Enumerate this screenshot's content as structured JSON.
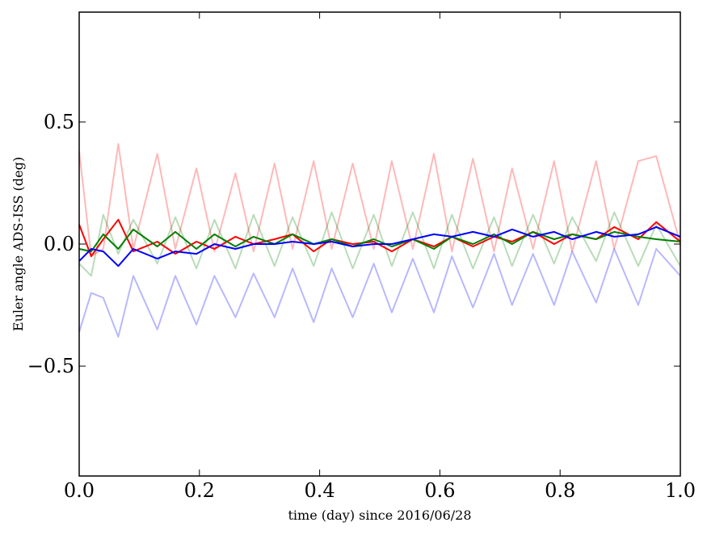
{
  "chart_data": {
    "type": "line",
    "title": "",
    "xlabel": "time (day) since 2016/06/28",
    "ylabel": "Euler angle ADS-ISS (deg)",
    "xlim": [
      0.0,
      1.0
    ],
    "ylim": [
      -0.95,
      0.95
    ],
    "x_ticks": [
      0.0,
      0.2,
      0.4,
      0.6,
      0.8,
      1.0
    ],
    "x_tick_labels": [
      "0.0",
      "0.2",
      "0.4",
      "0.6",
      "0.8",
      "1.0"
    ],
    "y_ticks": [
      -0.5,
      0.0,
      0.5
    ],
    "y_tick_labels": [
      "−0.5",
      "0.0",
      "0.5"
    ],
    "grid": false,
    "legend": "none",
    "x": [
      0.0,
      0.02,
      0.04,
      0.065,
      0.09,
      0.13,
      0.16,
      0.195,
      0.225,
      0.26,
      0.29,
      0.325,
      0.355,
      0.39,
      0.42,
      0.455,
      0.49,
      0.52,
      0.555,
      0.59,
      0.62,
      0.655,
      0.69,
      0.72,
      0.755,
      0.79,
      0.82,
      0.86,
      0.89,
      0.93,
      0.96,
      1.0
    ],
    "series": [
      {
        "color": "#ff0000",
        "alpha": 0.28,
        "values": [
          0.38,
          -0.05,
          -0.02,
          0.41,
          -0.02,
          0.37,
          -0.02,
          0.31,
          -0.03,
          0.29,
          -0.03,
          0.33,
          -0.02,
          0.34,
          -0.02,
          0.33,
          -0.02,
          0.34,
          -0.02,
          0.37,
          -0.03,
          0.35,
          -0.03,
          0.31,
          -0.02,
          0.34,
          -0.03,
          0.34,
          -0.02,
          0.34,
          0.36,
          0.0
        ]
      },
      {
        "color": "#008000",
        "alpha": 0.28,
        "values": [
          -0.08,
          -0.13,
          0.12,
          -0.04,
          0.1,
          -0.08,
          0.11,
          -0.1,
          0.1,
          -0.1,
          0.12,
          -0.09,
          0.11,
          -0.09,
          0.13,
          -0.1,
          0.12,
          -0.09,
          0.13,
          -0.1,
          0.12,
          -0.1,
          0.11,
          -0.09,
          0.12,
          -0.08,
          0.11,
          -0.07,
          0.13,
          -0.09,
          0.08,
          -0.09
        ]
      },
      {
        "color": "#0000ff",
        "alpha": 0.28,
        "values": [
          -0.36,
          -0.2,
          -0.22,
          -0.38,
          -0.13,
          -0.35,
          -0.13,
          -0.33,
          -0.13,
          -0.3,
          -0.12,
          -0.3,
          -0.1,
          -0.32,
          -0.1,
          -0.3,
          -0.08,
          -0.28,
          -0.06,
          -0.28,
          -0.05,
          -0.26,
          -0.04,
          -0.25,
          -0.04,
          -0.25,
          -0.03,
          -0.24,
          -0.02,
          -0.25,
          -0.02,
          -0.13
        ]
      },
      {
        "color": "#ff0000",
        "alpha": 1.0,
        "values": [
          0.08,
          -0.05,
          0.02,
          0.1,
          -0.03,
          0.01,
          -0.04,
          0.01,
          -0.02,
          0.03,
          0.0,
          0.02,
          0.04,
          -0.03,
          0.02,
          0.0,
          0.01,
          -0.03,
          0.02,
          -0.01,
          0.03,
          -0.01,
          0.03,
          0.01,
          0.05,
          0.0,
          0.04,
          0.02,
          0.07,
          0.02,
          0.09,
          0.01
        ]
      },
      {
        "color": "#008000",
        "alpha": 1.0,
        "values": [
          -0.02,
          -0.03,
          0.04,
          -0.02,
          0.06,
          -0.01,
          0.05,
          -0.02,
          0.04,
          -0.01,
          0.03,
          0.0,
          0.04,
          0.0,
          0.02,
          -0.01,
          0.02,
          -0.01,
          0.02,
          -0.02,
          0.03,
          0.0,
          0.04,
          0.0,
          0.05,
          0.02,
          0.04,
          0.02,
          0.05,
          0.03,
          0.02,
          0.01
        ]
      },
      {
        "color": "#0000ff",
        "alpha": 1.0,
        "values": [
          -0.07,
          -0.02,
          -0.03,
          -0.09,
          -0.02,
          -0.06,
          -0.03,
          -0.04,
          0.0,
          -0.02,
          0.0,
          0.0,
          0.01,
          0.0,
          0.01,
          -0.01,
          0.0,
          0.0,
          0.02,
          0.04,
          0.03,
          0.05,
          0.03,
          0.06,
          0.03,
          0.05,
          0.02,
          0.05,
          0.03,
          0.04,
          0.07,
          0.03
        ]
      }
    ]
  }
}
